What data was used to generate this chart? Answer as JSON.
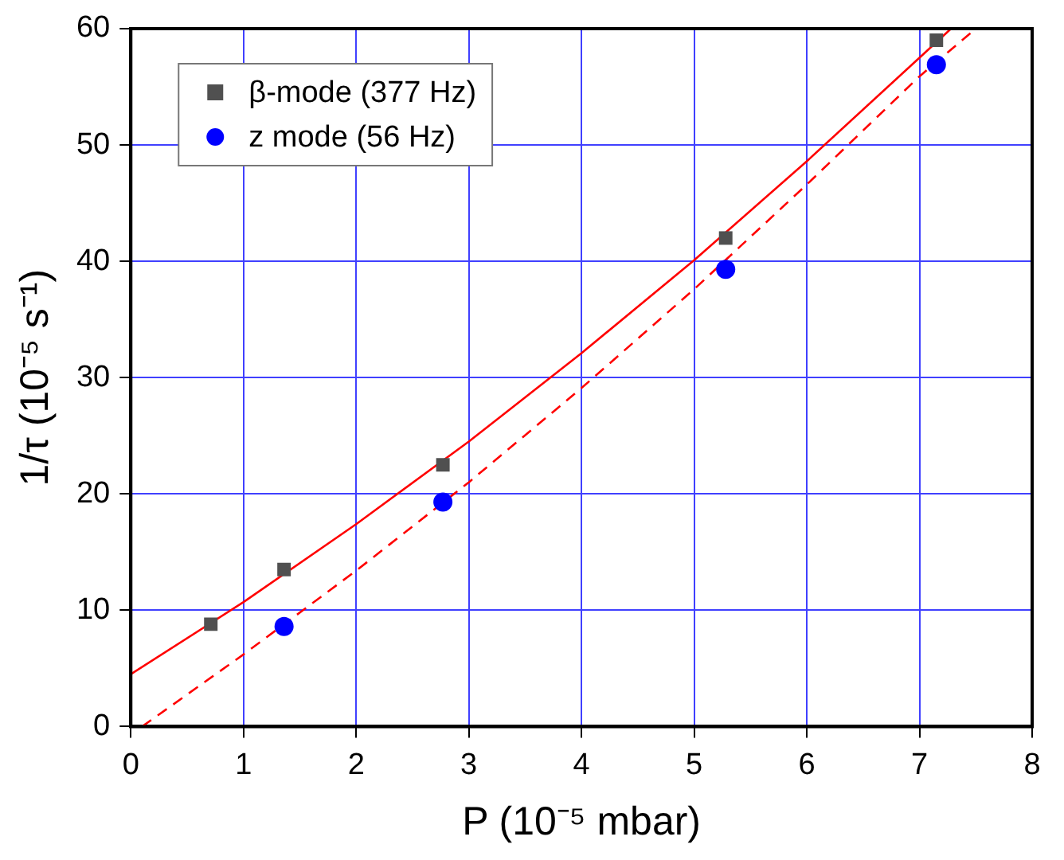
{
  "chart_data": {
    "type": "scatter",
    "xlabel": "P (10⁻⁵ mbar)",
    "ylabel": "1/τ (10⁻⁵ s⁻¹)",
    "xlim": [
      0,
      8
    ],
    "xticks": [
      0,
      1,
      2,
      3,
      4,
      5,
      6,
      7,
      8
    ],
    "ylim": [
      0,
      60
    ],
    "yticks": [
      0,
      10,
      20,
      30,
      40,
      50,
      60
    ],
    "grid": true,
    "legend": "top left",
    "series": [
      {
        "name": "β-mode (377 Hz)",
        "marker": "square",
        "color": "#505050",
        "x": [
          0.71,
          1.36,
          2.77,
          5.28,
          7.15
        ],
        "values": [
          8.8,
          13.5,
          22.5,
          42.0,
          59.0
        ]
      },
      {
        "name": "z mode (56 Hz)",
        "marker": "circle",
        "color": "#0000ff",
        "x": [
          1.36,
          2.77,
          5.28,
          7.15
        ],
        "values": [
          8.6,
          19.3,
          39.3,
          56.9
        ]
      },
      {
        "type": "line",
        "marker": "none",
        "line_style": "solid",
        "color": "#ff0000",
        "x": [
          0,
          1,
          2,
          3,
          4,
          5,
          6,
          7,
          7.28
        ],
        "values": [
          4.5,
          10.7,
          17.4,
          24.5,
          32.1,
          40.1,
          48.6,
          57.5,
          60
        ]
      },
      {
        "type": "line",
        "marker": "none",
        "line_style": "dashed",
        "color": "#ff0000",
        "x": [
          0.1,
          1,
          2,
          3,
          4,
          5,
          6,
          7,
          7.5
        ],
        "values": [
          0,
          6.2,
          13.4,
          21.0,
          29.1,
          37.6,
          46.6,
          55.9,
          60
        ]
      }
    ]
  }
}
